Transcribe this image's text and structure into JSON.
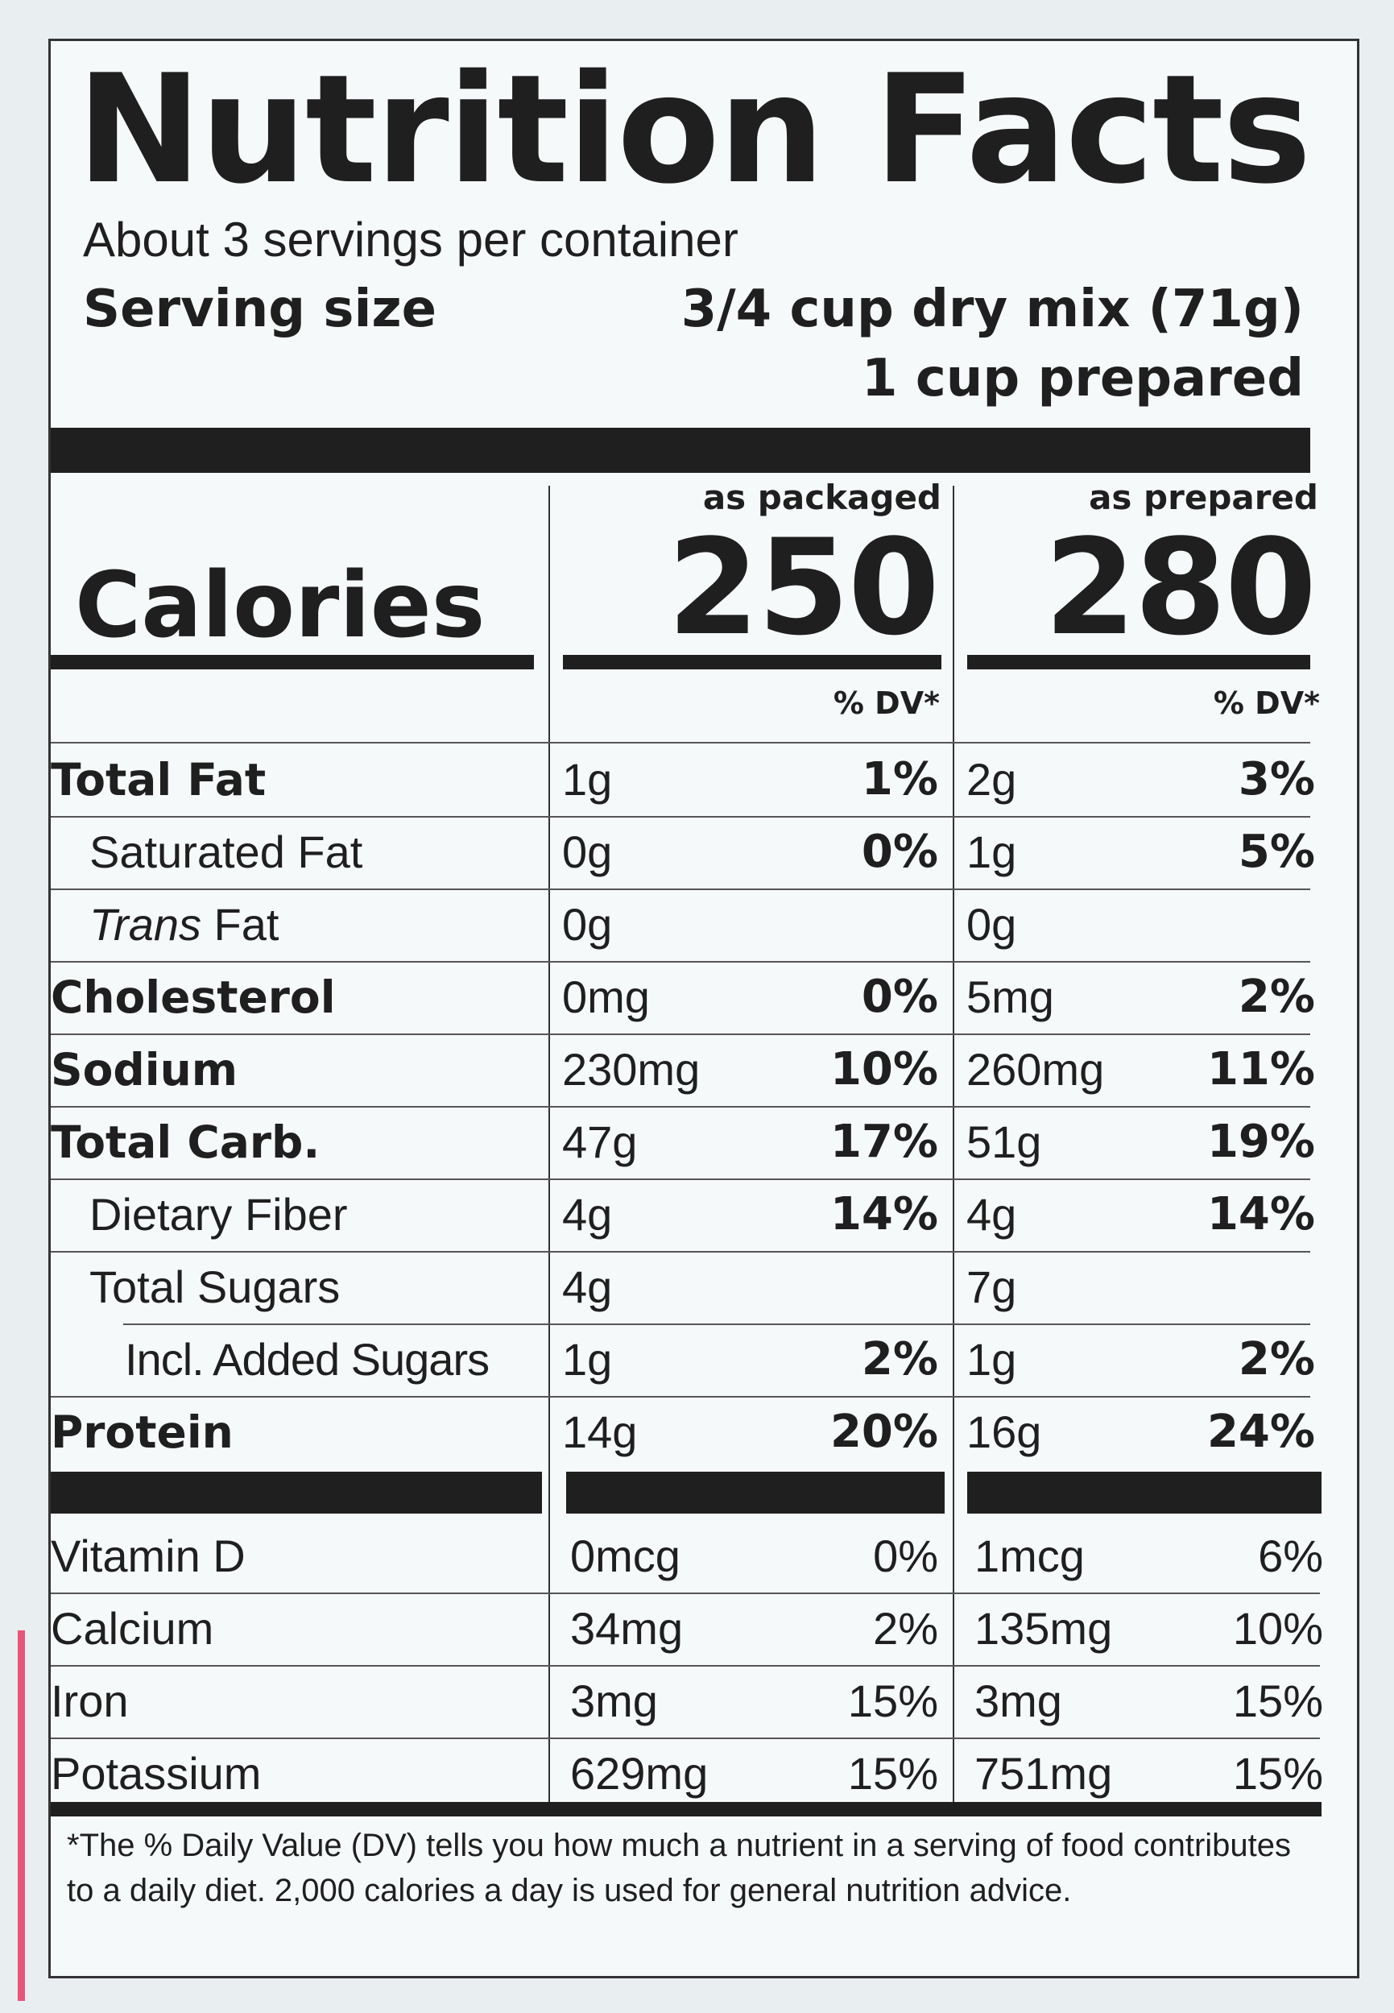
{
  "label": {
    "title": "Nutrition Facts",
    "servings_per_container": "About 3 servings per container",
    "serving_size_label": "Serving size",
    "serving_size_line1": "3/4 cup dry mix (71g)",
    "serving_size_line2": "1 cup prepared",
    "col_packaged": "as packaged",
    "col_prepared": "as prepared",
    "calories_label": "Calories",
    "calories_packaged": "250",
    "calories_prepared": "280",
    "dv_header": "% DV*",
    "nutrients": [
      {
        "name": "Total Fat",
        "pk_amt": "1g",
        "pk_dv": "1%",
        "pr_amt": "2g",
        "pr_dv": "3%"
      },
      {
        "name": "Saturated Fat",
        "pk_amt": "0g",
        "pk_dv": "0%",
        "pr_amt": "1g",
        "pr_dv": "5%"
      },
      {
        "name_italic": "Trans",
        "name_rest": " Fat",
        "pk_amt": "0g",
        "pk_dv": "",
        "pr_amt": "0g",
        "pr_dv": ""
      },
      {
        "name": "Cholesterol",
        "pk_amt": "0mg",
        "pk_dv": "0%",
        "pr_amt": "5mg",
        "pr_dv": "2%"
      },
      {
        "name": "Sodium",
        "pk_amt": "230mg",
        "pk_dv": "10%",
        "pr_amt": "260mg",
        "pr_dv": "11%"
      },
      {
        "name": "Total Carb.",
        "pk_amt": "47g",
        "pk_dv": "17%",
        "pr_amt": "51g",
        "pr_dv": "19%"
      },
      {
        "name": "Dietary Fiber",
        "pk_amt": "4g",
        "pk_dv": "14%",
        "pr_amt": "4g",
        "pr_dv": "14%"
      },
      {
        "name": "Total Sugars",
        "pk_amt": "4g",
        "pk_dv": "",
        "pr_amt": "7g",
        "pr_dv": ""
      },
      {
        "name": "Incl. Added Sugars",
        "pk_amt": "1g",
        "pk_dv": "2%",
        "pr_amt": "1g",
        "pr_dv": "2%"
      },
      {
        "name": "Protein",
        "pk_amt": "14g",
        "pk_dv": "20%",
        "pr_amt": "16g",
        "pr_dv": "24%"
      }
    ],
    "vitamins": [
      {
        "name": "Vitamin D",
        "pk_amt": "0mcg",
        "pk_dv": "0%",
        "pr_amt": "1mcg",
        "pr_dv": "6%"
      },
      {
        "name": "Calcium",
        "pk_amt": "34mg",
        "pk_dv": "2%",
        "pr_amt": "135mg",
        "pr_dv": "10%"
      },
      {
        "name": "Iron",
        "pk_amt": "3mg",
        "pk_dv": "15%",
        "pr_amt": "3mg",
        "pr_dv": "15%"
      },
      {
        "name": "Potassium",
        "pk_amt": "629mg",
        "pk_dv": "15%",
        "pr_amt": "751mg",
        "pr_dv": "15%"
      }
    ],
    "footnote": "*The % Daily Value (DV) tells you how much a nutrient in a serving of food contributes to a daily diet. 2,000 calories a day is used for general nutrition advice."
  }
}
